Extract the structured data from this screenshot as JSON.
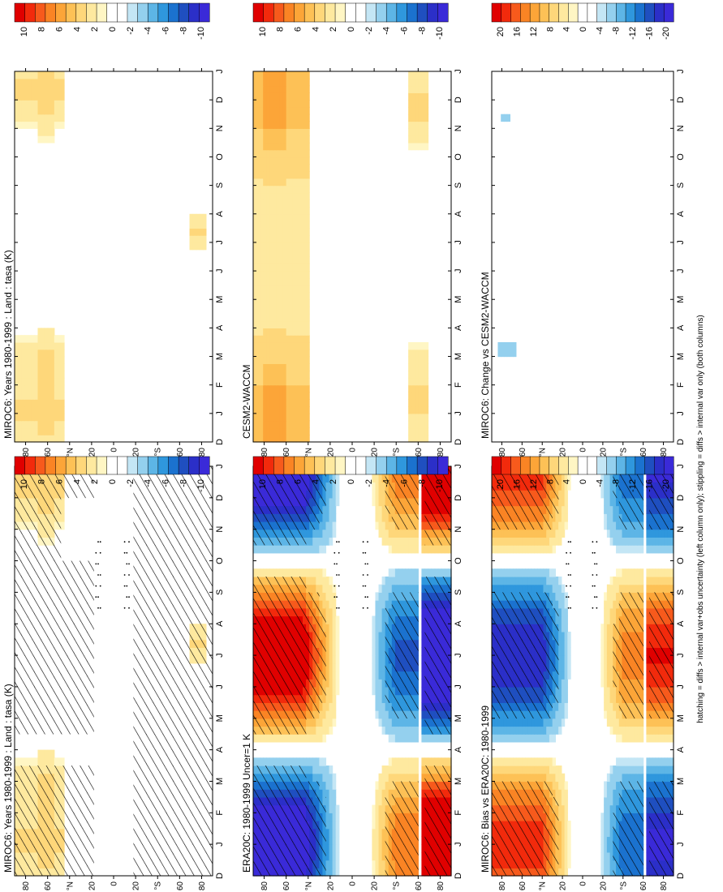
{
  "figure": {
    "caption": "hatching = diffs > internal var+obs uncertainty (left column only); stippling = diffs > internal var only (both columns)"
  },
  "colormap": {
    "reds": [
      "#e00000",
      "#f22a0c",
      "#f75a1c",
      "#fa8424",
      "#fca538",
      "#fdc156",
      "#fed77a",
      "#fee99f",
      "#fff6c4"
    ],
    "blues": [
      "#c4e6f5",
      "#94d0ee",
      "#5db5e6",
      "#2f97dd",
      "#1b72cf",
      "#1f4fc0",
      "#2b2fc8",
      "#3a2ad8"
    ]
  },
  "chart_data": [
    {
      "id": "miroc6-left",
      "type": "heatmap",
      "title": "MIROC6: Years 1980-1999 : Land : tasa (K)",
      "x": [
        "D",
        "J",
        "F",
        "M",
        "A",
        "M",
        "J",
        "J",
        "A",
        "S",
        "O",
        "N",
        "D",
        "J"
      ],
      "y": [
        "80",
        "60",
        "°N",
        "20",
        "0",
        "20",
        "°S",
        "60",
        "80"
      ],
      "ylim": [
        -90,
        90
      ],
      "colorbar_ticks": [
        "10",
        "8",
        "6",
        "4",
        "2",
        "0",
        "-2",
        "-4",
        "-6",
        "-8",
        "-10"
      ],
      "pattern": "miroc",
      "hatch": true,
      "stipple": true
    },
    {
      "id": "miroc6-right",
      "type": "heatmap",
      "title": "MIROC6: Years 1980-1999 : Land : tasa (K)",
      "x": [
        "D",
        "J",
        "F",
        "M",
        "A",
        "M",
        "J",
        "J",
        "A",
        "S",
        "O",
        "N",
        "D",
        "J"
      ],
      "y": [
        "80",
        "60",
        "°N",
        "20",
        "0",
        "20",
        "°S",
        "60",
        "80"
      ],
      "ylim": [
        -90,
        90
      ],
      "colorbar_ticks": [
        "10",
        "8",
        "6",
        "4",
        "2",
        "0",
        "-2",
        "-4",
        "-6",
        "-8",
        "-10"
      ],
      "pattern": "miroc",
      "hatch": false,
      "stipple": false
    },
    {
      "id": "era20c",
      "type": "heatmap",
      "title": "ERA20C: 1980-1999 Uncer=1 K",
      "x": [
        "D",
        "J",
        "F",
        "M",
        "A",
        "M",
        "J",
        "J",
        "A",
        "S",
        "O",
        "N",
        "D",
        "J"
      ],
      "y": [
        "80",
        "60",
        "°N",
        "20",
        "0",
        "20",
        "°S",
        "60",
        "80"
      ],
      "ylim": [
        -90,
        90
      ],
      "colorbar_ticks": [
        "10",
        "8",
        "6",
        "4",
        "2",
        "0",
        "-2",
        "-4",
        "-6",
        "-8",
        "-10"
      ],
      "pattern": "era",
      "hatch": true,
      "stipple": true
    },
    {
      "id": "cesm2",
      "type": "heatmap",
      "title": "CESM2-WACCM",
      "x": [
        "D",
        "J",
        "F",
        "M",
        "A",
        "M",
        "J",
        "J",
        "A",
        "S",
        "O",
        "N",
        "D",
        "J"
      ],
      "y": [
        "80",
        "60",
        "°N",
        "20",
        "0",
        "20",
        "°S",
        "60",
        "80"
      ],
      "ylim": [
        -90,
        90
      ],
      "colorbar_ticks": [
        "10",
        "8",
        "6",
        "4",
        "2",
        "0",
        "-2",
        "-4",
        "-6",
        "-8",
        "-10"
      ],
      "pattern": "cesm",
      "hatch": false,
      "stipple": false
    },
    {
      "id": "bias",
      "type": "heatmap",
      "title": "MIROC6: Bias vs ERA20C: 1980-1999",
      "x": [
        "D",
        "J",
        "F",
        "M",
        "A",
        "M",
        "J",
        "J",
        "A",
        "S",
        "O",
        "N",
        "D",
        "J"
      ],
      "y": [
        "80",
        "60",
        "°N",
        "20",
        "0",
        "20",
        "°S",
        "60",
        "80"
      ],
      "ylim": [
        -90,
        90
      ],
      "colorbar_ticks": [
        "20",
        "16",
        "12",
        "8",
        "4",
        "0",
        "-4",
        "-8",
        "-12",
        "-16",
        "-20"
      ],
      "pattern": "bias",
      "hatch": true,
      "stipple": true
    },
    {
      "id": "change",
      "type": "heatmap",
      "title": "MIROC6: Change vs CESM2-WACCM",
      "x": [
        "D",
        "J",
        "F",
        "M",
        "A",
        "M",
        "J",
        "J",
        "A",
        "S",
        "O",
        "N",
        "D",
        "J"
      ],
      "y": [
        "80",
        "60",
        "°N",
        "20",
        "0",
        "20",
        "°S",
        "60",
        "80"
      ],
      "ylim": [
        -90,
        90
      ],
      "colorbar_ticks": [
        "20",
        "16",
        "12",
        "8",
        "4",
        "0",
        "-4",
        "-8",
        "-12",
        "-16",
        "-20"
      ],
      "pattern": "change",
      "hatch": false,
      "stipple": false
    }
  ]
}
